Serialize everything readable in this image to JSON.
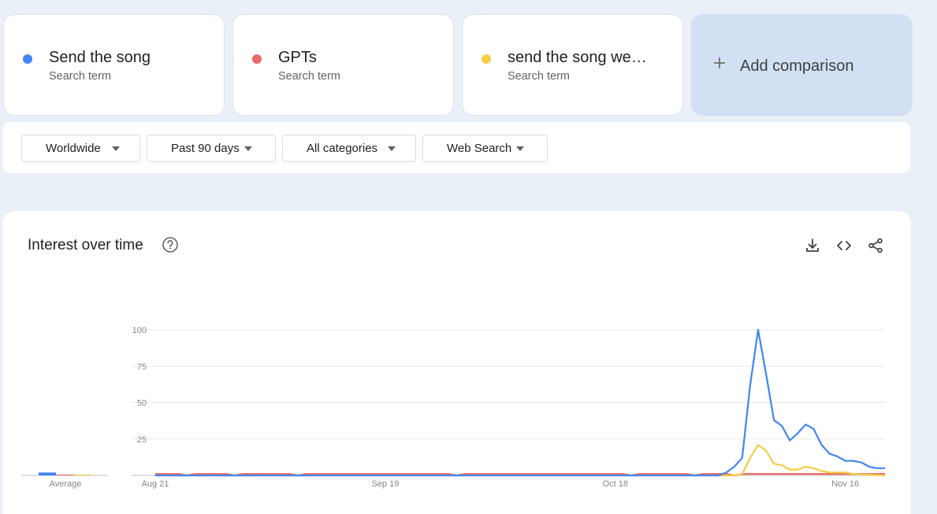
{
  "terms": [
    {
      "name": "Send the song",
      "sub": "Search term",
      "color": "#4285f4"
    },
    {
      "name": "GPTs",
      "sub": "Search term",
      "color": "#ea6b66"
    },
    {
      "name": "send the song we…",
      "sub": "Search term",
      "color": "#f5cc44"
    }
  ],
  "add_comparison": {
    "label": "Add comparison",
    "icon": "plus-icon"
  },
  "filters": {
    "region": "Worldwide",
    "time": "Past 90 days",
    "category": "All categories",
    "property": "Web Search"
  },
  "chart": {
    "title": "Interest over time",
    "help_icon": "help-circle-icon",
    "tools": [
      "download-icon",
      "embed-code-icon",
      "share-icon"
    ]
  },
  "chart_data": {
    "type": "line",
    "title": "Interest over time",
    "ylim": [
      0,
      100
    ],
    "yticks": [
      25,
      50,
      75,
      100
    ],
    "x_tick_labels": [
      "Aug 21",
      "Sep 19",
      "Oct 18",
      "Nov 16"
    ],
    "x_tick_days": [
      0,
      29,
      58,
      87
    ],
    "x_range_days": [
      0,
      92
    ],
    "grid": true,
    "average_label": "Average",
    "averages": [
      4,
      1,
      1
    ],
    "series": [
      {
        "name": "Send the song",
        "color": "#4285f4",
        "points": [
          [
            0,
            0
          ],
          [
            71,
            0
          ],
          [
            72,
            2
          ],
          [
            73,
            6
          ],
          [
            74,
            12
          ],
          [
            75,
            62
          ],
          [
            76,
            100
          ],
          [
            77,
            70
          ],
          [
            78,
            38
          ],
          [
            79,
            34
          ],
          [
            80,
            24
          ],
          [
            81,
            29
          ],
          [
            82,
            35
          ],
          [
            83,
            32
          ],
          [
            84,
            21
          ],
          [
            85,
            15
          ],
          [
            86,
            13
          ],
          [
            87,
            10
          ],
          [
            88,
            10
          ],
          [
            89,
            9
          ],
          [
            90,
            6
          ],
          [
            91,
            5
          ],
          [
            92,
            5
          ]
        ]
      },
      {
        "name": "GPTs",
        "color": "#ea6b66",
        "points": [
          [
            0,
            1
          ],
          [
            3,
            1
          ],
          [
            4,
            0
          ],
          [
            5,
            1
          ],
          [
            9,
            1
          ],
          [
            10,
            0
          ],
          [
            11,
            1
          ],
          [
            17,
            1
          ],
          [
            18,
            0
          ],
          [
            19,
            1
          ],
          [
            37,
            1
          ],
          [
            38,
            0
          ],
          [
            39,
            1
          ],
          [
            59,
            1
          ],
          [
            60,
            0
          ],
          [
            61,
            1
          ],
          [
            67,
            1
          ],
          [
            68,
            0
          ],
          [
            69,
            1
          ],
          [
            72,
            1
          ],
          [
            73,
            0
          ],
          [
            74,
            1
          ],
          [
            92,
            1
          ]
        ]
      },
      {
        "name": "send the song we…",
        "color": "#f5cc44",
        "points": [
          [
            0,
            0
          ],
          [
            73,
            0
          ],
          [
            74,
            1
          ],
          [
            75,
            12
          ],
          [
            76,
            21
          ],
          [
            77,
            17
          ],
          [
            78,
            8
          ],
          [
            79,
            7
          ],
          [
            80,
            4
          ],
          [
            81,
            4
          ],
          [
            82,
            6
          ],
          [
            83,
            5
          ],
          [
            84,
            3
          ],
          [
            85,
            2
          ],
          [
            86,
            2
          ],
          [
            87,
            2
          ],
          [
            88,
            1
          ],
          [
            92,
            0
          ]
        ]
      }
    ]
  }
}
